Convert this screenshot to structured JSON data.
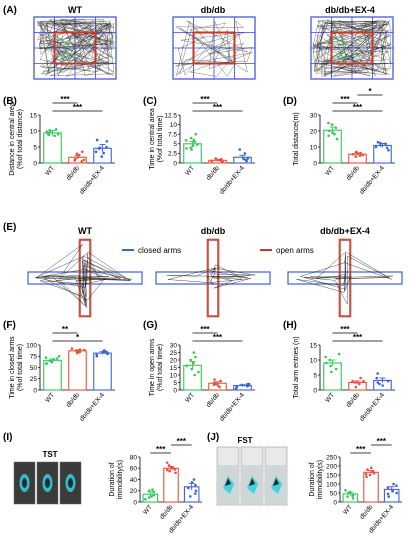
{
  "colors": {
    "wt": "#34c759",
    "dbdb": "#e5533d",
    "ex4": "#3b63d6",
    "grid": "#3a49d8",
    "central": "#c0392b",
    "closedArm": "#3b63d6",
    "openArm": "#c0392b",
    "mouseCyan": "#2fd3e0"
  },
  "groups": [
    "WT",
    "db/db",
    "db/db+EX-4"
  ],
  "panels": {
    "A": {
      "label": "(A)",
      "titles": [
        "WT",
        "db/db",
        "db/db+EX-4"
      ]
    },
    "E": {
      "label": "(E)",
      "titles": [
        "WT",
        "db/db",
        "db/db+EX-4"
      ],
      "legend_closed": "closed arms",
      "legend_open": "open arms"
    },
    "I": {
      "label": "(I)",
      "test": "TST"
    },
    "J": {
      "label": "(J)",
      "test": "FST"
    }
  },
  "chart_data": [
    {
      "panel": "(B)",
      "type": "bar",
      "ylabel_lines": [
        "Distance in central area",
        "(%of total distance)"
      ],
      "ylim": [
        0,
        15
      ],
      "ticks": [
        0,
        5,
        10,
        15
      ],
      "categories": [
        "WT",
        "db/db",
        "db/db+EX-4"
      ],
      "values": [
        9.4,
        1.8,
        4.6
      ],
      "errors": [
        0.8,
        0.5,
        1.2
      ],
      "points": [
        [
          8.5,
          9.0,
          10.2,
          9.8,
          8.8,
          10.5,
          9.1,
          9.6
        ],
        [
          0.5,
          1.2,
          2.5,
          3.5,
          1.0,
          1.8,
          0.8,
          2.9
        ],
        [
          2.0,
          3.1,
          4.5,
          6.8,
          7.2,
          5.0,
          3.5,
          4.8
        ]
      ],
      "sig": [
        {
          "from": 0,
          "to": 2,
          "label": "***"
        },
        {
          "from": 0,
          "to": 1,
          "label": "***"
        }
      ]
    },
    {
      "panel": "(C)",
      "type": "bar",
      "ylabel_lines": [
        "Time in central area",
        "(%of total time)"
      ],
      "ylim": [
        0,
        12.5
      ],
      "ticks": [
        0,
        2.5,
        5.0,
        7.5,
        10.0,
        12.5
      ],
      "categories": [
        "WT",
        "db/db",
        "db/db+EX-4"
      ],
      "values": [
        5.0,
        0.7,
        1.5
      ],
      "errors": [
        0.6,
        0.25,
        0.5
      ],
      "points": [
        [
          3.5,
          4.5,
          6.0,
          5.5,
          7.5,
          4.0,
          4.8,
          5.9,
          3.8,
          6.5
        ],
        [
          0.2,
          0.5,
          1.0,
          0.8,
          0.3,
          1.2,
          0.6
        ],
        [
          0.5,
          1.0,
          2.5,
          3.5,
          1.2,
          0.8
        ]
      ],
      "sig": [
        {
          "from": 0,
          "to": 2,
          "label": "***"
        },
        {
          "from": 0,
          "to": 1,
          "label": "***"
        }
      ]
    },
    {
      "panel": "(D)",
      "type": "bar",
      "ylabel_lines": [
        "Total distance(m)"
      ],
      "ylim": [
        0,
        30
      ],
      "ticks": [
        0,
        10,
        20,
        30
      ],
      "categories": [
        "WT",
        "db/db",
        "db/db+EX-4"
      ],
      "values": [
        20.5,
        5.5,
        11.0
      ],
      "errors": [
        2.0,
        0.8,
        1.2
      ],
      "points": [
        [
          15,
          18,
          24,
          22,
          20,
          25,
          19,
          17
        ],
        [
          4,
          6,
          5,
          7,
          5.5,
          4.5,
          6.2
        ],
        [
          8,
          10,
          12,
          13,
          11,
          9.5,
          12.5
        ]
      ],
      "sig": [
        {
          "from": 0,
          "to": 2,
          "label": "***"
        },
        {
          "from": 0,
          "to": 1,
          "label": "***"
        },
        {
          "from": 1,
          "to": 2,
          "label": "*"
        }
      ]
    },
    {
      "panel": "(F)",
      "type": "bar",
      "ylabel_lines": [
        "Time in closed arms",
        "(%of total time)"
      ],
      "ylim": [
        0,
        100
      ],
      "ticks": [
        0,
        25,
        50,
        75,
        100
      ],
      "categories": [
        "WT",
        "db/db",
        "db/db+EX-4"
      ],
      "values": [
        66,
        87,
        82
      ],
      "errors": [
        3,
        2,
        3
      ],
      "points": [
        [
          58,
          62,
          70,
          68,
          72,
          60,
          65,
          75
        ],
        [
          82,
          85,
          90,
          88,
          92,
          84,
          86,
          89
        ],
        [
          75,
          80,
          85,
          88,
          78,
          83,
          84,
          86
        ]
      ],
      "sig": [
        {
          "from": 0,
          "to": 2,
          "label": "*"
        },
        {
          "from": 0,
          "to": 1,
          "label": "**"
        }
      ]
    },
    {
      "panel": "(G)",
      "type": "bar",
      "ylabel_lines": [
        "Time in open arms",
        "(%of total time)"
      ],
      "ylim": [
        0,
        30
      ],
      "ticks": [
        0,
        5,
        10,
        15,
        20,
        25,
        30
      ],
      "categories": [
        "WT",
        "db/db",
        "db/db+EX-4"
      ],
      "values": [
        16.5,
        4.5,
        3.0
      ],
      "errors": [
        2.5,
        1.0,
        0.8
      ],
      "points": [
        [
          10,
          14,
          22,
          25,
          18,
          12,
          16,
          20
        ],
        [
          2,
          3,
          5,
          7,
          4,
          6,
          3.5
        ],
        [
          1,
          2,
          4,
          3,
          2.5,
          3.8
        ]
      ],
      "sig": [
        {
          "from": 0,
          "to": 2,
          "label": "***"
        },
        {
          "from": 0,
          "to": 1,
          "label": "***"
        }
      ]
    },
    {
      "panel": "(H)",
      "type": "bar",
      "ylabel_lines": [
        "Total arm entries (n)"
      ],
      "ylim": [
        0,
        15
      ],
      "ticks": [
        0,
        5,
        10,
        15
      ],
      "categories": [
        "WT",
        "db/db",
        "db/db+EX-4"
      ],
      "values": [
        9.0,
        2.5,
        3.2
      ],
      "errors": [
        1.0,
        0.5,
        0.8
      ],
      "points": [
        [
          6,
          8,
          10,
          12,
          9,
          7,
          11
        ],
        [
          1,
          2,
          3,
          4,
          2.5,
          3
        ],
        [
          1.5,
          2,
          4,
          5.5,
          3,
          2.5
        ]
      ],
      "sig": [
        {
          "from": 0,
          "to": 2,
          "label": "***"
        },
        {
          "from": 0,
          "to": 1,
          "label": "***"
        }
      ]
    },
    {
      "panel": "(I)",
      "type": "bar",
      "ylabel_lines": [
        "Duration of",
        "immobility(s)"
      ],
      "ylim": [
        0,
        80
      ],
      "ticks": [
        0,
        20,
        40,
        60,
        80
      ],
      "categories": [
        "WT",
        "db/db",
        "db/db+EX-4"
      ],
      "values": [
        14,
        60,
        27
      ],
      "errors": [
        4,
        3,
        6
      ],
      "points": [
        [
          5,
          10,
          18,
          22,
          12,
          8,
          20
        ],
        [
          52,
          55,
          60,
          65,
          70,
          58,
          62,
          57
        ],
        [
          10,
          20,
          30,
          40,
          15,
          35,
          25
        ]
      ],
      "sig": [
        {
          "from": 0,
          "to": 1,
          "label": "***"
        },
        {
          "from": 1,
          "to": 2,
          "label": "***"
        }
      ]
    },
    {
      "panel": "(J)",
      "type": "bar",
      "ylabel_lines": [
        "Duration of",
        "immobility(s)"
      ],
      "ylim": [
        0,
        250
      ],
      "ticks": [
        0,
        50,
        100,
        150,
        200,
        250
      ],
      "categories": [
        "WT",
        "db/db",
        "db/db+EX-4"
      ],
      "values": [
        45,
        165,
        70
      ],
      "errors": [
        10,
        10,
        15
      ],
      "points": [
        [
          20,
          35,
          50,
          65,
          40,
          55,
          30
        ],
        [
          140,
          155,
          170,
          180,
          190,
          160,
          150
        ],
        [
          30,
          50,
          80,
          100,
          60,
          90,
          45
        ]
      ],
      "sig": [
        {
          "from": 0,
          "to": 1,
          "label": "***"
        },
        {
          "from": 1,
          "to": 2,
          "label": "***"
        }
      ]
    }
  ]
}
